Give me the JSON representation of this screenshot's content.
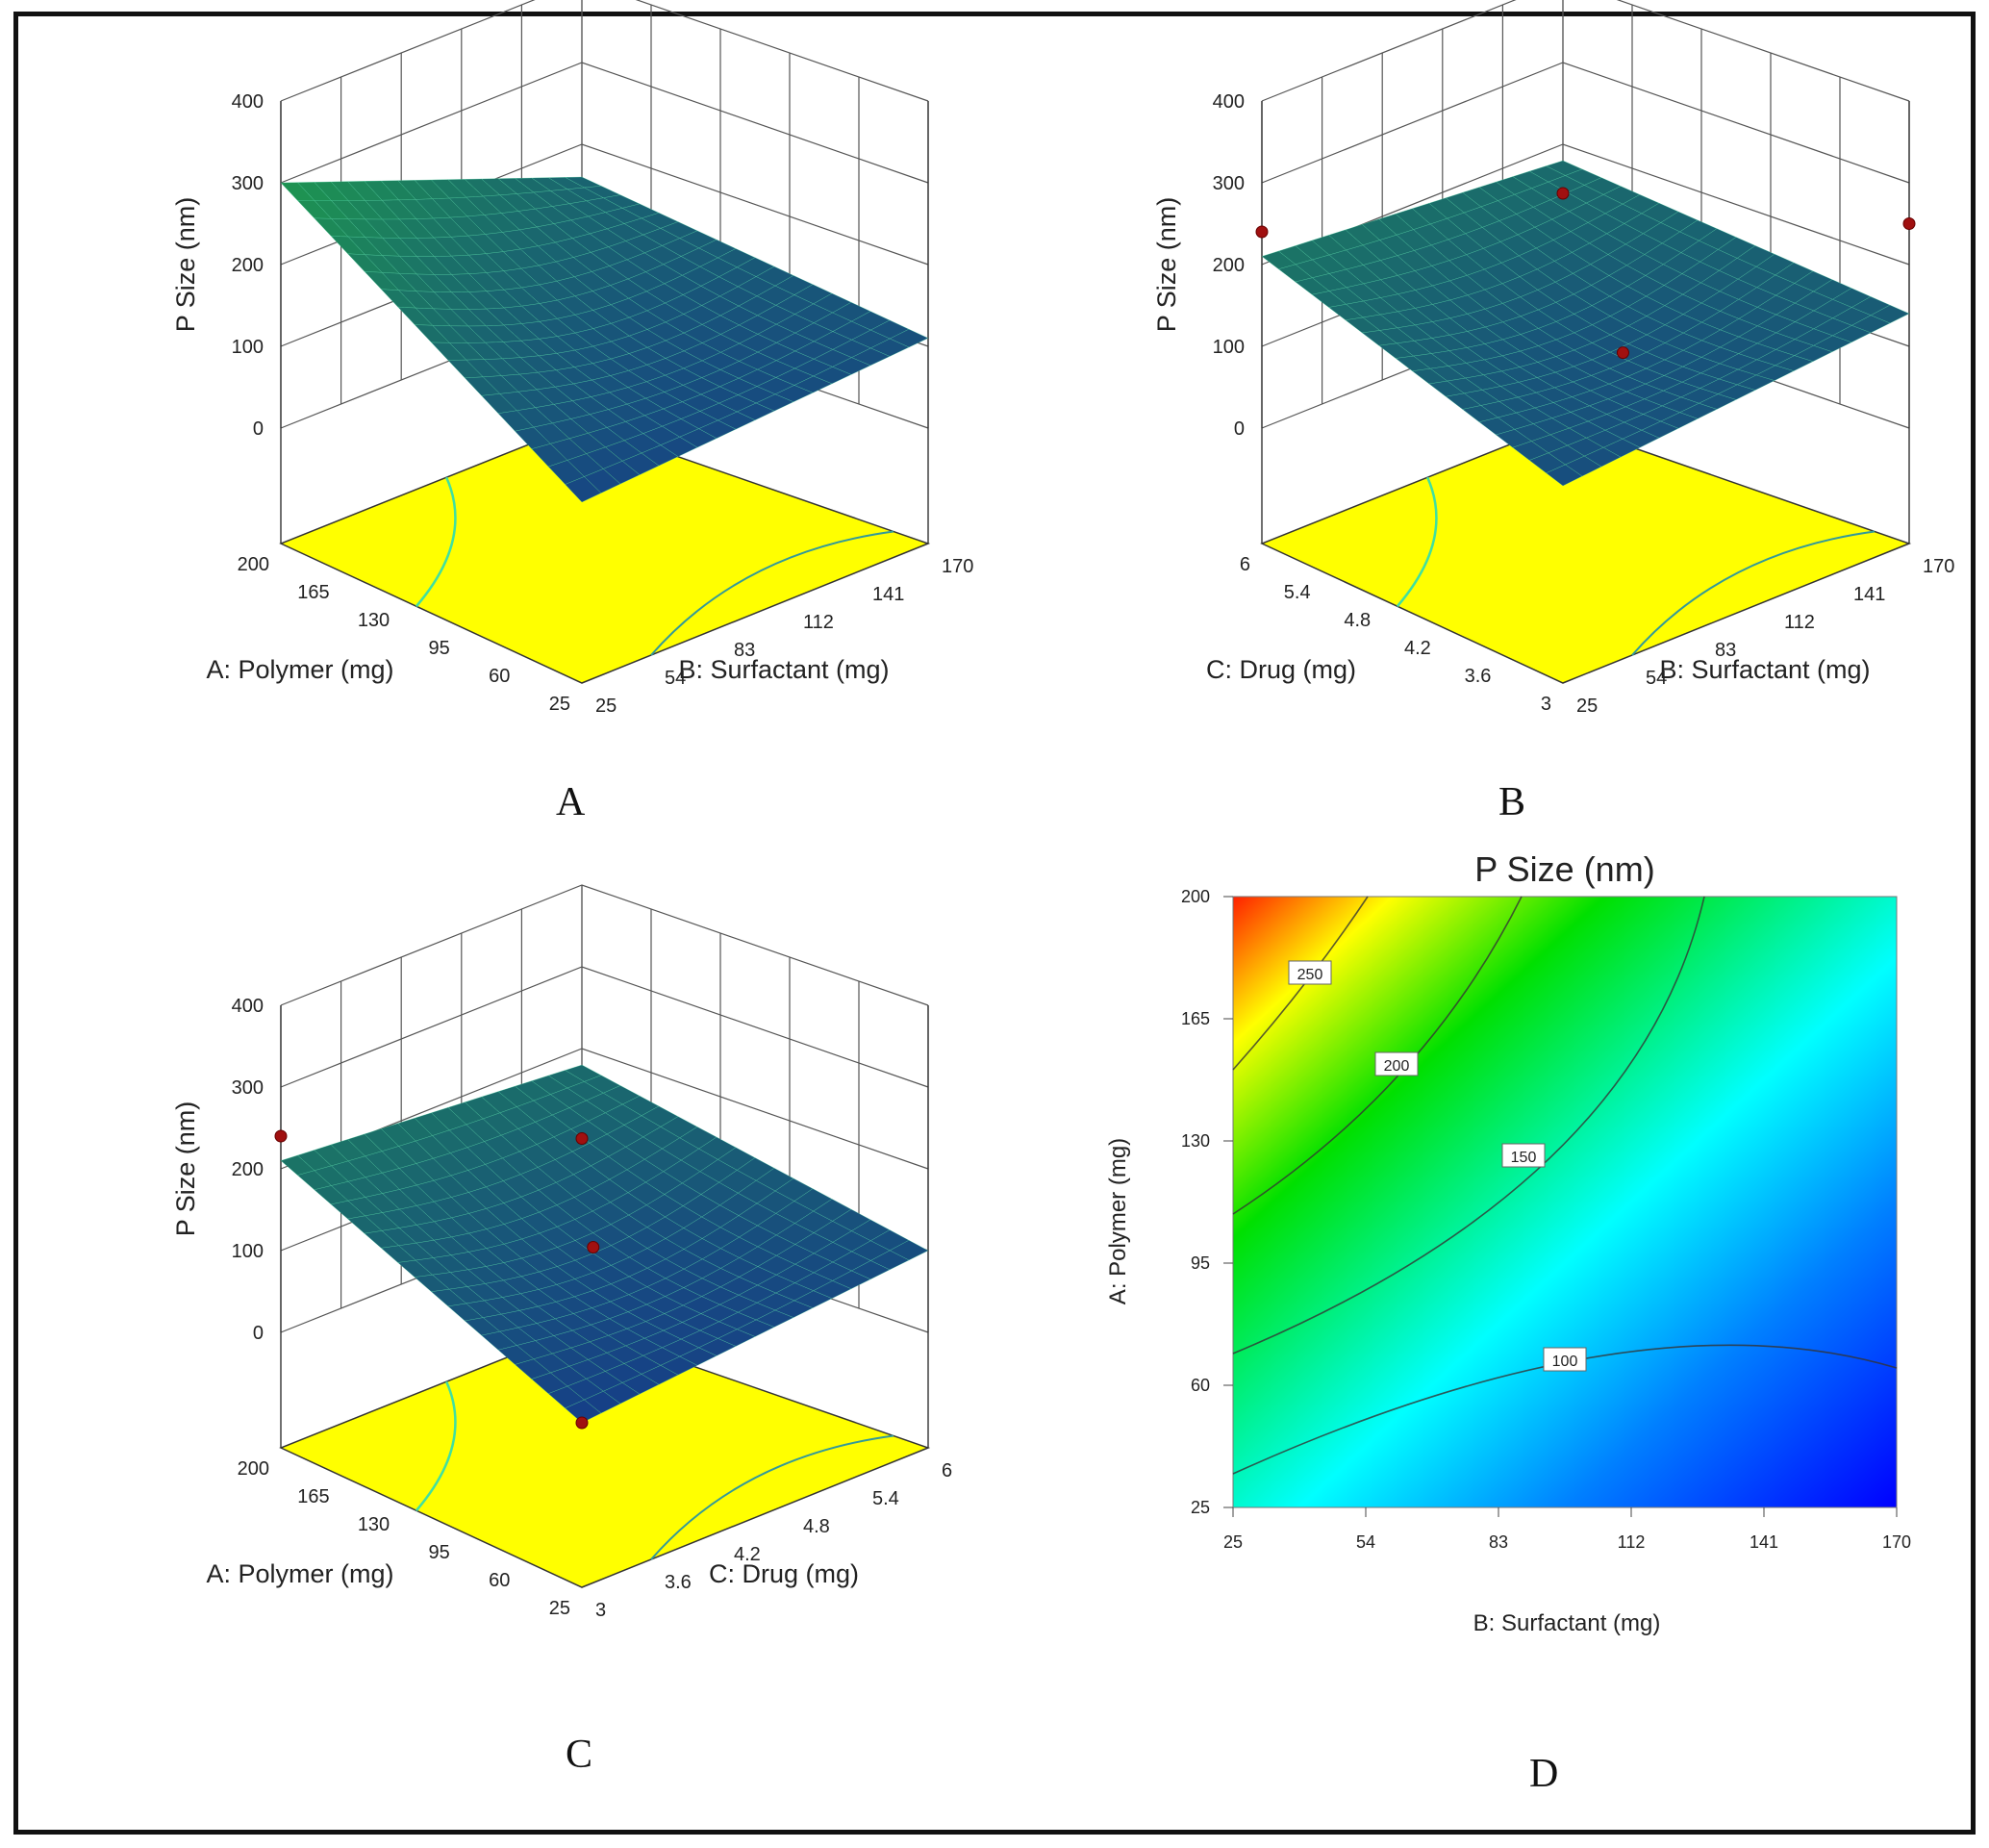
{
  "chart_data": [
    {
      "panel": "A",
      "type": "surface3d",
      "zlabel": "P Size (nm)",
      "zticks": [
        "0",
        "100",
        "200",
        "300",
        "400"
      ],
      "zlim": [
        0,
        400
      ],
      "left_axis": {
        "label": "A: Polymer (mg)",
        "ticks": [
          "200",
          "165",
          "130",
          "95",
          "60",
          "25"
        ]
      },
      "right_axis": {
        "label": "B: Surfactant (mg)",
        "ticks": [
          "25",
          "54",
          "83",
          "112",
          "141",
          "170"
        ]
      },
      "corner_values": {
        "left": 300,
        "front": 80,
        "right": 110,
        "back": 160
      },
      "design_points": []
    },
    {
      "panel": "B",
      "type": "surface3d",
      "zlabel": "P Size (nm)",
      "zticks": [
        "0",
        "100",
        "200",
        "300",
        "400"
      ],
      "zlim": [
        0,
        400
      ],
      "left_axis": {
        "label": "C: Drug (mg)",
        "ticks": [
          "6",
          "5.4",
          "4.8",
          "4.2",
          "3.6",
          "3"
        ]
      },
      "right_axis": {
        "label": "B: Surfactant (mg)",
        "ticks": [
          "25",
          "54",
          "83",
          "112",
          "141",
          "170"
        ]
      },
      "corner_values": {
        "left": 210,
        "front": 100,
        "right": 140,
        "back": 180
      },
      "design_points": [
        {
          "u": 0,
          "v": 0,
          "z": 240
        },
        {
          "u": 1,
          "v": 1,
          "z": 250
        },
        {
          "u": 0,
          "v": 1,
          "z": 140
        },
        {
          "u": 0.55,
          "v": 0.6,
          "z": 90
        }
      ]
    },
    {
      "panel": "C",
      "type": "surface3d",
      "zlabel": "P Size (nm)",
      "zticks": [
        "0",
        "100",
        "200",
        "300",
        "400"
      ],
      "zlim": [
        0,
        400
      ],
      "left_axis": {
        "label": "A: Polymer (mg)",
        "ticks": [
          "200",
          "165",
          "130",
          "95",
          "60",
          "25"
        ]
      },
      "right_axis": {
        "label": "C: Drug (mg)",
        "ticks": [
          "3",
          "3.6",
          "4.2",
          "4.8",
          "5.4",
          "6"
        ]
      },
      "corner_values": {
        "left": 210,
        "front": 60,
        "right": 100,
        "back": 180
      },
      "design_points": [
        {
          "u": 0,
          "v": 0,
          "z": 240
        },
        {
          "u": 1,
          "v": 0,
          "z": 60
        },
        {
          "u": 0,
          "v": 1,
          "z": 90
        },
        {
          "u": 0.5,
          "v": 0.5,
          "z": 110
        }
      ]
    },
    {
      "panel": "D",
      "type": "contour",
      "title": "P Size (nm)",
      "xlabel": "B: Surfactant (mg)",
      "ylabel": "A: Polymer (mg)",
      "xticks": [
        "25",
        "54",
        "83",
        "112",
        "141",
        "170"
      ],
      "yticks": [
        "25",
        "60",
        "95",
        "130",
        "165",
        "200"
      ],
      "xlim": [
        25,
        170
      ],
      "ylim": [
        25,
        200
      ],
      "contour_levels": [
        "100",
        "150",
        "200",
        "250"
      ],
      "colorscale": [
        "#0000ff",
        "#00ffff",
        "#00e000",
        "#ffff00",
        "#ff2000"
      ]
    }
  ],
  "panel_labels": [
    "A",
    "B",
    "C",
    "D"
  ]
}
